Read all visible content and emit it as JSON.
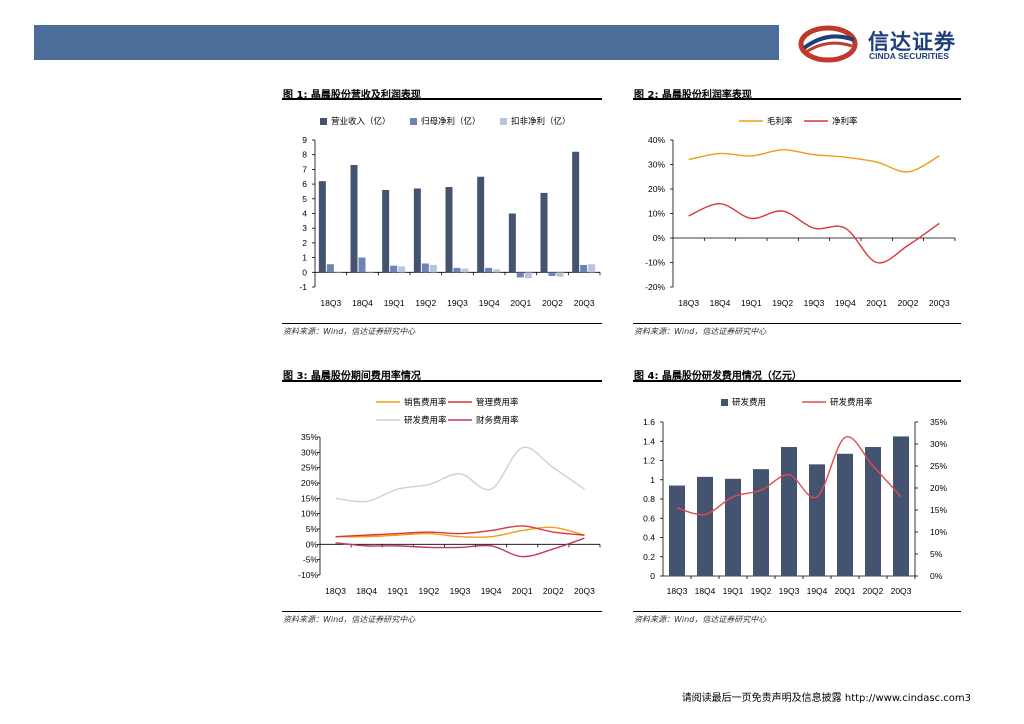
{
  "header": {
    "brand_cn": "信达证券",
    "brand_en": "CINDA SECURITIES",
    "banner_color": "#4a6d99"
  },
  "figures": {
    "fig1": {
      "title": "图 1:  晶晨股份营收及利润表现",
      "source": "资料来源：Wind，信达证券研究中心"
    },
    "fig2": {
      "title": "图 2:  晶晨股份利润率表现",
      "source": "资料来源：Wind，信达证券研究中心"
    },
    "fig3": {
      "title": "图 3:  晶晨股份期间费用率情况",
      "source": "资料来源：Wind，信达证券研究中心"
    },
    "fig4": {
      "title": "图 4:  晶晨股份研发费用情况（亿元）",
      "source": "资料来源：Wind，信达证券研究中心"
    }
  },
  "footer": {
    "disclaimer": "请阅读最后一页免责声明及信息披露 http://www.cindasc.com3"
  },
  "chart_data": [
    {
      "type": "bar",
      "categories": [
        "18Q3",
        "18Q4",
        "19Q1",
        "19Q2",
        "19Q3",
        "19Q4",
        "20Q1",
        "20Q2",
        "20Q3"
      ],
      "series": [
        {
          "name": "营业收入（亿）",
          "color": "#44536f",
          "values": [
            6.2,
            7.3,
            5.6,
            5.7,
            5.8,
            6.5,
            4.0,
            5.4,
            8.2
          ]
        },
        {
          "name": "归母净利（亿）",
          "color": "#6d82b5",
          "values": [
            0.55,
            1.0,
            0.45,
            0.6,
            0.3,
            0.3,
            -0.35,
            -0.25,
            0.5
          ]
        },
        {
          "name": "扣非净利（亿）",
          "color": "#b8c6dc",
          "values": [
            0.05,
            0.05,
            0.4,
            0.5,
            0.25,
            0.2,
            -0.4,
            -0.3,
            0.55
          ]
        }
      ],
      "yticks": [
        "-1",
        "0",
        "1",
        "2",
        "3",
        "4",
        "5",
        "6",
        "7",
        "8",
        "9"
      ],
      "ylim": [
        -1,
        9
      ],
      "legend": "top"
    },
    {
      "type": "line",
      "categories": [
        "18Q3",
        "18Q4",
        "19Q1",
        "19Q2",
        "19Q3",
        "19Q4",
        "20Q1",
        "20Q2",
        "20Q3"
      ],
      "series": [
        {
          "name": "毛利率",
          "color": "#f39c12",
          "values": [
            32,
            34.5,
            33.5,
            36,
            34,
            33,
            31,
            27,
            33.5
          ]
        },
        {
          "name": "净利率",
          "color": "#d9383a",
          "values": [
            9,
            14,
            8,
            11,
            4,
            4,
            -10,
            -3,
            6
          ]
        }
      ],
      "yticks": [
        "40%",
        "30%",
        "20%",
        "10%",
        "0%",
        "-10%",
        "-20%"
      ],
      "ylim": [
        -20,
        40
      ],
      "legend": "top"
    },
    {
      "type": "line",
      "categories": [
        "18Q3",
        "18Q4",
        "19Q1",
        "19Q2",
        "19Q3",
        "19Q4",
        "20Q1",
        "20Q2",
        "20Q3"
      ],
      "series": [
        {
          "name": "销售费用率",
          "color": "#f39c12",
          "values": [
            2.5,
            2.5,
            3,
            3.5,
            2.5,
            2.5,
            4.5,
            5.5,
            3
          ]
        },
        {
          "name": "管理费用率",
          "color": "#d9383a",
          "values": [
            2.5,
            3,
            3.5,
            4,
            3.5,
            4.5,
            6,
            4,
            3
          ]
        },
        {
          "name": "研发费用率",
          "color": "#cfcfcf",
          "values": [
            15,
            14,
            18,
            19.5,
            23,
            18,
            31.5,
            25,
            18
          ]
        },
        {
          "name": "财务费用率",
          "color": "#c0395a",
          "values": [
            0.5,
            -0.5,
            -0.5,
            -1,
            -1,
            -0.5,
            -4,
            -1.5,
            2
          ]
        }
      ],
      "yticks": [
        "35%",
        "30%",
        "25%",
        "20%",
        "15%",
        "10%",
        "5%",
        "0%",
        "-5%",
        "-10%"
      ],
      "ylim": [
        -10,
        35
      ],
      "legend": "top"
    },
    {
      "type": "bar",
      "categories": [
        "18Q3",
        "18Q4",
        "19Q1",
        "19Q2",
        "19Q3",
        "19Q4",
        "20Q1",
        "20Q2",
        "20Q3"
      ],
      "series": [
        {
          "name": "研发费用",
          "color": "#44536f",
          "values": [
            0.94,
            1.03,
            1.01,
            1.11,
            1.34,
            1.16,
            1.27,
            1.34,
            1.45
          ],
          "axis": "left"
        },
        {
          "name": "研发费用率",
          "color": "#e24b4f",
          "values": [
            15.5,
            14,
            18,
            19.5,
            23,
            18,
            31.5,
            25,
            18
          ],
          "axis": "right",
          "type": "line"
        }
      ],
      "yticks": [
        "0",
        "0.2",
        "0.4",
        "0.6",
        "0.8",
        "1",
        "1.2",
        "1.4",
        "1.6"
      ],
      "ylim": [
        0,
        1.6
      ],
      "y2ticks": [
        "0%",
        "5%",
        "10%",
        "15%",
        "20%",
        "25%",
        "30%",
        "35%"
      ],
      "y2lim": [
        0,
        35
      ],
      "legend": "top"
    }
  ]
}
